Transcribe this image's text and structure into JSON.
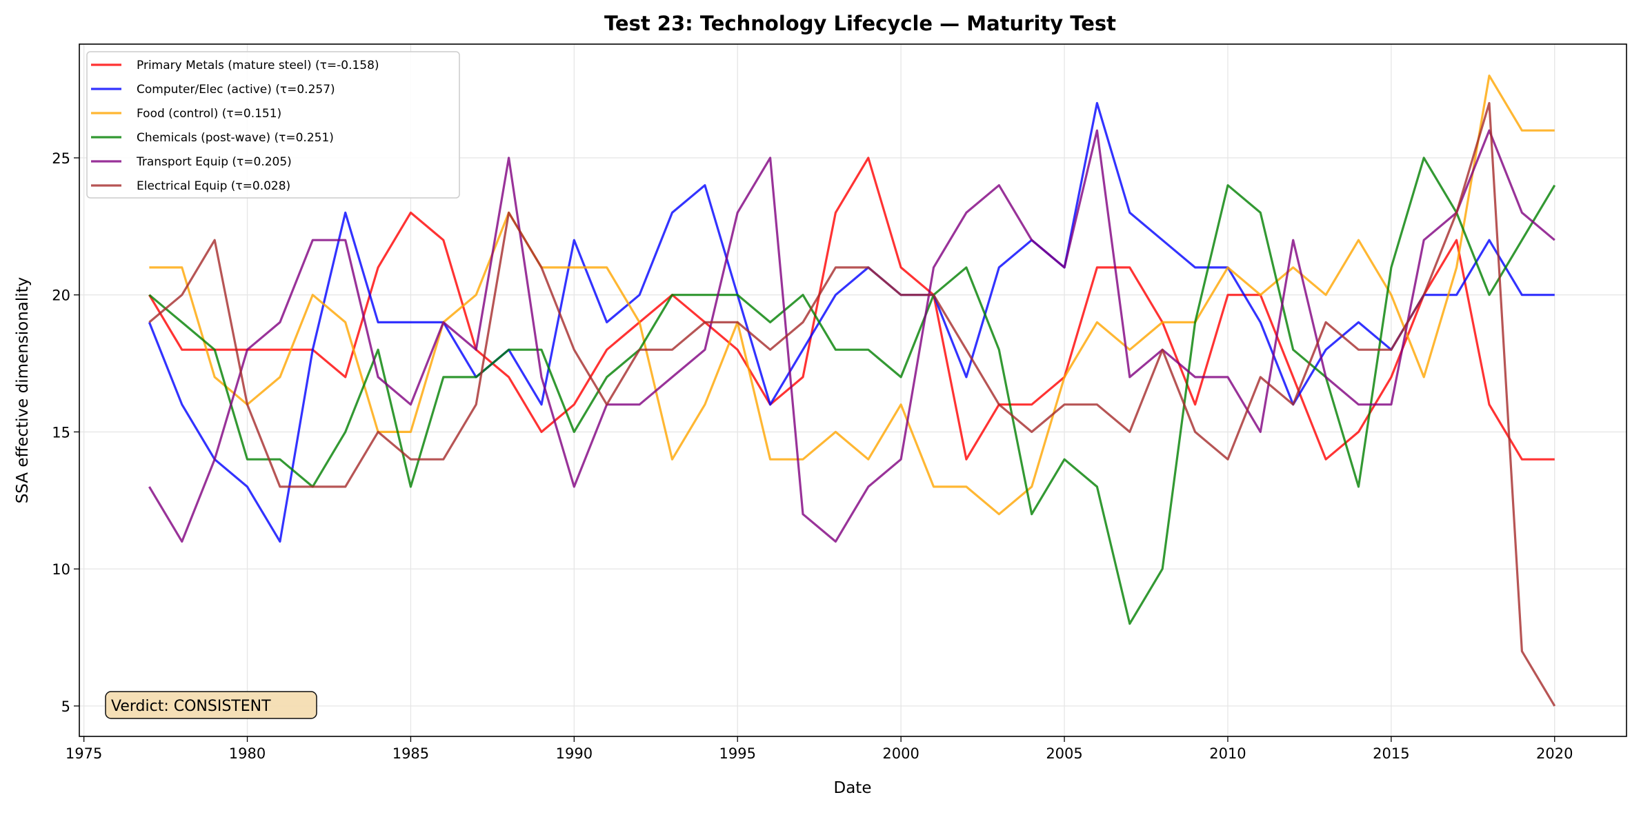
{
  "chart_data": {
    "type": "line",
    "title": "Test 23: Technology Lifecycle — Maturity Test",
    "xlabel": "Date",
    "ylabel": "SSA effective dimensionality",
    "xlim": [
      1974.86,
      2022.2
    ],
    "ylim": [
      3.89,
      29.15
    ],
    "xticks": [
      1975,
      1980,
      1985,
      1990,
      1995,
      2000,
      2005,
      2010,
      2015,
      2020
    ],
    "yticks": [
      5,
      10,
      15,
      20,
      25
    ],
    "grid": true,
    "legend_position": "top-left",
    "x": [
      1977,
      1978,
      1979,
      1980,
      1981,
      1982,
      1983,
      1984,
      1985,
      1986,
      1987,
      1988,
      1989,
      1990,
      1991,
      1992,
      1993,
      1994,
      1995,
      1996,
      1997,
      1998,
      1999,
      2000,
      2001,
      2002,
      2003,
      2004,
      2005,
      2006,
      2007,
      2008,
      2009,
      2010,
      2011,
      2012,
      2013,
      2014,
      2015,
      2016,
      2017,
      2018,
      2019,
      2020
    ],
    "series": [
      {
        "name": "Primary Metals (mature steel) (τ=-0.158)",
        "color": "#ff0000",
        "values": [
          20,
          18,
          18,
          18,
          18,
          18,
          17,
          21,
          23,
          22,
          18,
          17,
          15,
          16,
          18,
          19,
          20,
          19,
          18,
          16,
          17,
          23,
          25,
          21,
          20,
          14,
          16,
          16,
          17,
          21,
          21,
          19,
          16,
          20,
          20,
          17,
          14,
          15,
          17,
          20,
          22,
          16,
          14,
          14
        ]
      },
      {
        "name": "Computer/Elec (active) (τ=0.257)",
        "color": "#0000ff",
        "values": [
          19,
          16,
          14,
          13,
          11,
          18,
          23,
          19,
          19,
          19,
          17,
          18,
          16,
          22,
          19,
          20,
          23,
          24,
          20,
          16,
          18,
          20,
          21,
          20,
          20,
          17,
          21,
          22,
          21,
          27,
          23,
          22,
          21,
          21,
          19,
          16,
          18,
          19,
          18,
          20,
          20,
          22,
          20,
          20
        ]
      },
      {
        "name": "Food (control) (τ=0.151)",
        "color": "#ffa500",
        "values": [
          21,
          21,
          17,
          16,
          17,
          20,
          19,
          15,
          15,
          19,
          20,
          23,
          21,
          21,
          21,
          19,
          14,
          16,
          19,
          14,
          14,
          15,
          14,
          16,
          13,
          13,
          12,
          13,
          17,
          19,
          18,
          19,
          19,
          21,
          20,
          21,
          20,
          22,
          20,
          17,
          21,
          28,
          26,
          26
        ]
      },
      {
        "name": "Chemicals (post-wave) (τ=0.251)",
        "color": "#008000",
        "values": [
          20,
          19,
          18,
          14,
          14,
          13,
          15,
          18,
          13,
          17,
          17,
          18,
          18,
          15,
          17,
          18,
          20,
          20,
          20,
          19,
          20,
          18,
          18,
          17,
          20,
          21,
          18,
          12,
          14,
          13,
          8,
          10,
          19,
          24,
          23,
          18,
          17,
          13,
          21,
          25,
          23,
          20,
          22,
          24
        ]
      },
      {
        "name": "Transport Equip (τ=0.205)",
        "color": "#800080",
        "values": [
          13,
          11,
          14,
          18,
          19,
          22,
          22,
          17,
          16,
          19,
          18,
          25,
          17,
          13,
          16,
          16,
          17,
          18,
          23,
          25,
          12,
          11,
          13,
          14,
          21,
          23,
          24,
          22,
          21,
          26,
          17,
          18,
          17,
          17,
          15,
          22,
          17,
          16,
          16,
          22,
          23,
          26,
          23,
          22
        ]
      },
      {
        "name": "Electrical Equip (τ=0.028)",
        "color": "#a52a2a",
        "values": [
          19,
          20,
          22,
          16,
          13,
          13,
          13,
          15,
          14,
          14,
          16,
          23,
          21,
          18,
          16,
          18,
          18,
          19,
          19,
          18,
          19,
          21,
          21,
          20,
          20,
          18,
          16,
          15,
          16,
          16,
          15,
          18,
          15,
          14,
          17,
          16,
          19,
          18,
          18,
          20,
          23,
          27,
          7,
          5
        ]
      }
    ],
    "annotations": [
      {
        "text": "Verdict: CONSISTENT",
        "box_color": "#f5deb3"
      }
    ]
  }
}
